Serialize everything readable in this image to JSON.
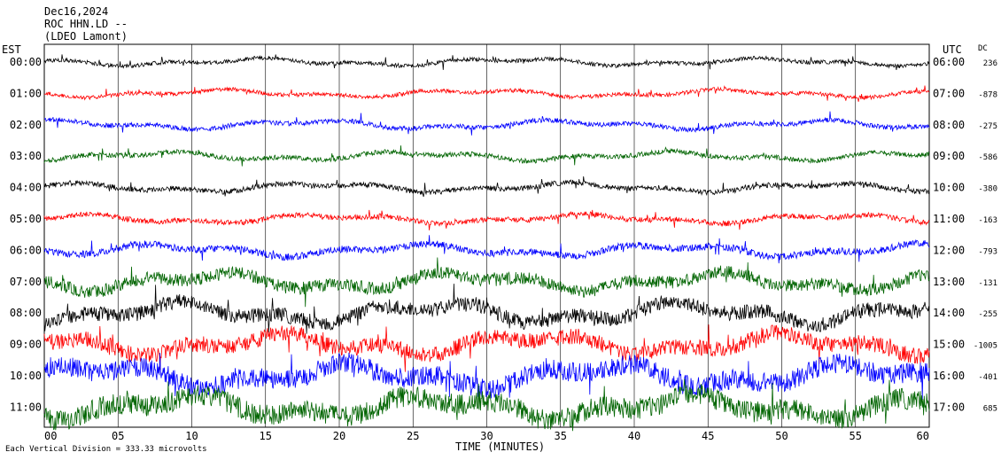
{
  "header": {
    "date": "Dec16,2024",
    "station": "ROC HHN.LD --",
    "network": "(LDEO Lamont)"
  },
  "left_axis_title": "EST",
  "right_axis_title": "UTC",
  "dc_title": "DC",
  "footer": {
    "scale_note": "Each Vertical Division = 333.33 microvolts",
    "xlabel": "TIME (MINUTES)"
  },
  "chart_data": {
    "type": "line",
    "xlabel": "TIME (MINUTES)",
    "xlim": [
      0,
      60
    ],
    "x_ticks": [
      "00",
      "05",
      "10",
      "15",
      "20",
      "25",
      "30",
      "35",
      "40",
      "45",
      "50",
      "55",
      "60"
    ],
    "grid": "vertical lines every 5 minutes",
    "series": [
      {
        "est": "00:00",
        "utc": "06:00",
        "dc": "236",
        "color": "#000000",
        "amplitude": 5,
        "noise": 0.45
      },
      {
        "est": "01:00",
        "utc": "07:00",
        "dc": "-878",
        "color": "#ff0000",
        "amplitude": 5,
        "noise": 0.45
      },
      {
        "est": "02:00",
        "utc": "08:00",
        "dc": "-275",
        "color": "#0000ff",
        "amplitude": 6,
        "noise": 0.45
      },
      {
        "est": "03:00",
        "utc": "09:00",
        "dc": "-586",
        "color": "#006400",
        "amplitude": 6,
        "noise": 0.45
      },
      {
        "est": "04:00",
        "utc": "10:00",
        "dc": "-380",
        "color": "#000000",
        "amplitude": 6,
        "noise": 0.5
      },
      {
        "est": "05:00",
        "utc": "11:00",
        "dc": "-163",
        "color": "#ff0000",
        "amplitude": 6,
        "noise": 0.5
      },
      {
        "est": "06:00",
        "utc": "12:00",
        "dc": "-793",
        "color": "#0000ff",
        "amplitude": 8,
        "noise": 0.5
      },
      {
        "est": "07:00",
        "utc": "13:00",
        "dc": "-131",
        "color": "#006400",
        "amplitude": 12,
        "noise": 0.6
      },
      {
        "est": "08:00",
        "utc": "14:00",
        "dc": "-255",
        "color": "#000000",
        "amplitude": 14,
        "noise": 0.6
      },
      {
        "est": "09:00",
        "utc": "15:00",
        "dc": "-1005",
        "color": "#ff0000",
        "amplitude": 14,
        "noise": 0.65
      },
      {
        "est": "10:00",
        "utc": "16:00",
        "dc": "-401",
        "color": "#0000ff",
        "amplitude": 16,
        "noise": 0.7
      },
      {
        "est": "11:00",
        "utc": "17:00",
        "dc": "685",
        "color": "#006400",
        "amplitude": 16,
        "noise": 0.75
      }
    ]
  }
}
